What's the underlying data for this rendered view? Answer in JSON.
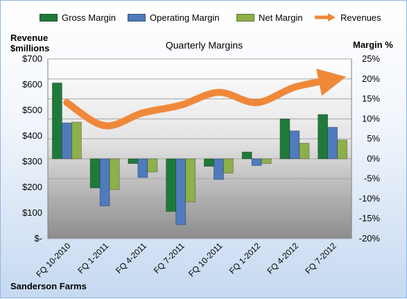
{
  "chart_data": {
    "type": "bar",
    "title": "Quarterly Margins",
    "company": "Sanderson Farms",
    "categories": [
      "FQ 10-2010",
      "FQ 1-2011",
      "FQ 4-2011",
      "FQ 7-2011",
      "FQ 10-2011",
      "FQ 1-2012",
      "FQ 4-2012",
      "FQ 7-2012"
    ],
    "series": [
      {
        "name": "Gross Margin",
        "axis": "right",
        "color": "#1f7a3a",
        "values": [
          19.0,
          -7.3,
          -1.2,
          -13.2,
          -1.9,
          1.7,
          10.0,
          11.1
        ]
      },
      {
        "name": "Operating Margin",
        "axis": "right",
        "color": "#4f7bbd",
        "values": [
          9.0,
          -11.8,
          -4.7,
          -16.5,
          -5.2,
          -1.7,
          7.0,
          7.9
        ]
      },
      {
        "name": "Net Margin",
        "axis": "right",
        "color": "#8db04a",
        "values": [
          9.2,
          -7.7,
          -3.3,
          -10.8,
          -3.6,
          -1.2,
          3.9,
          4.7
        ]
      }
    ],
    "line_series": {
      "name": "Revenues",
      "axis": "left",
      "color": "#f0883a",
      "values": [
        530,
        440,
        490,
        520,
        570,
        530,
        590,
        620
      ]
    },
    "ylabel_left": "Revenue $millions",
    "ylabel_right": "Margin %",
    "ylim_left": [
      0,
      700
    ],
    "ylim_right": [
      -20,
      25
    ],
    "yticks_left": [
      "$-",
      "$100",
      "$200",
      "$300",
      "$400",
      "$500",
      "$600",
      "$700"
    ],
    "yticks_right": [
      "-20%",
      "-15%",
      "-10%",
      "-5%",
      "0%",
      "5%",
      "10%",
      "15%",
      "20%",
      "25%"
    ],
    "legend_position": "top",
    "grid": true
  }
}
